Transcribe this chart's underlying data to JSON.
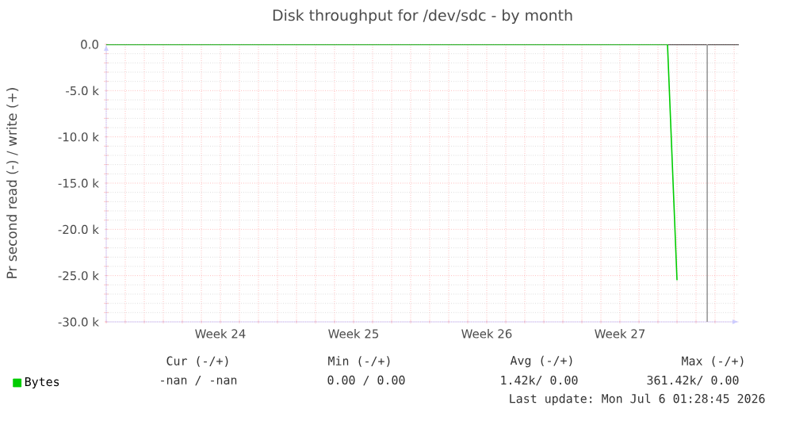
{
  "chart_data": {
    "type": "line",
    "title": "Disk throughput for /dev/sdc - by month",
    "ylabel": "Pr second read (-) / write (+)",
    "categories": [
      null,
      null,
      null,
      null,
      null,
      null,
      null,
      null,
      null,
      null,
      null,
      null,
      "Week 24",
      null,
      null,
      null,
      null,
      null,
      null,
      null,
      null,
      null,
      null,
      null,
      null,
      null,
      "Week 25",
      null,
      null,
      null,
      null,
      null,
      null,
      null,
      null,
      null,
      null,
      null,
      null,
      null,
      "Week 26",
      null,
      null,
      null,
      null,
      null,
      null,
      null,
      null,
      null,
      null,
      null,
      null,
      null,
      "Week 27",
      null,
      null,
      null,
      null,
      null,
      null,
      null,
      null,
      null,
      null,
      null,
      null
    ],
    "series": [
      {
        "name": "Bytes",
        "color": "#00cc00",
        "values": [
          0,
          0,
          0,
          0,
          0,
          0,
          0,
          0,
          0,
          0,
          0,
          0,
          0,
          0,
          0,
          0,
          0,
          0,
          0,
          0,
          0,
          0,
          0,
          0,
          0,
          0,
          0,
          0,
          0,
          0,
          0,
          0,
          0,
          0,
          0,
          0,
          0,
          0,
          0,
          0,
          0,
          0,
          0,
          0,
          0,
          0,
          0,
          0,
          0,
          0,
          0,
          0,
          0,
          0,
          0,
          0,
          0,
          0,
          0,
          0,
          -25500,
          null,
          null,
          null,
          null,
          null,
          null
        ]
      }
    ],
    "ylim": [
      -30000,
      0
    ],
    "yticks": [
      {
        "value": 0,
        "label": "0.0"
      },
      {
        "value": -5000,
        "label": "-5.0 k"
      },
      {
        "value": -10000,
        "label": "-10.0 k"
      },
      {
        "value": -15000,
        "label": "-15.0 k"
      },
      {
        "value": -20000,
        "label": "-20.0 k"
      },
      {
        "value": -25000,
        "label": "-25.0 k"
      },
      {
        "value": -30000,
        "label": "-30.0 k"
      }
    ],
    "ref_lines": [
      {
        "axis": "y",
        "value": 0,
        "color": "#000000"
      }
    ],
    "grid": true,
    "legend": "bottom left",
    "marker": "none",
    "line_style": "solid",
    "annotations": [
      "Cur (-/+)",
      "Min (-/+)",
      "Avg (-/+)",
      "Max (-/+)",
      "-nan / -nan",
      "0.00 / 0.00",
      "1.42k/ 0.00",
      "361.42k/ 0.00",
      "Last update: Mon Jul 6 01:28:45 2026"
    ]
  }
}
